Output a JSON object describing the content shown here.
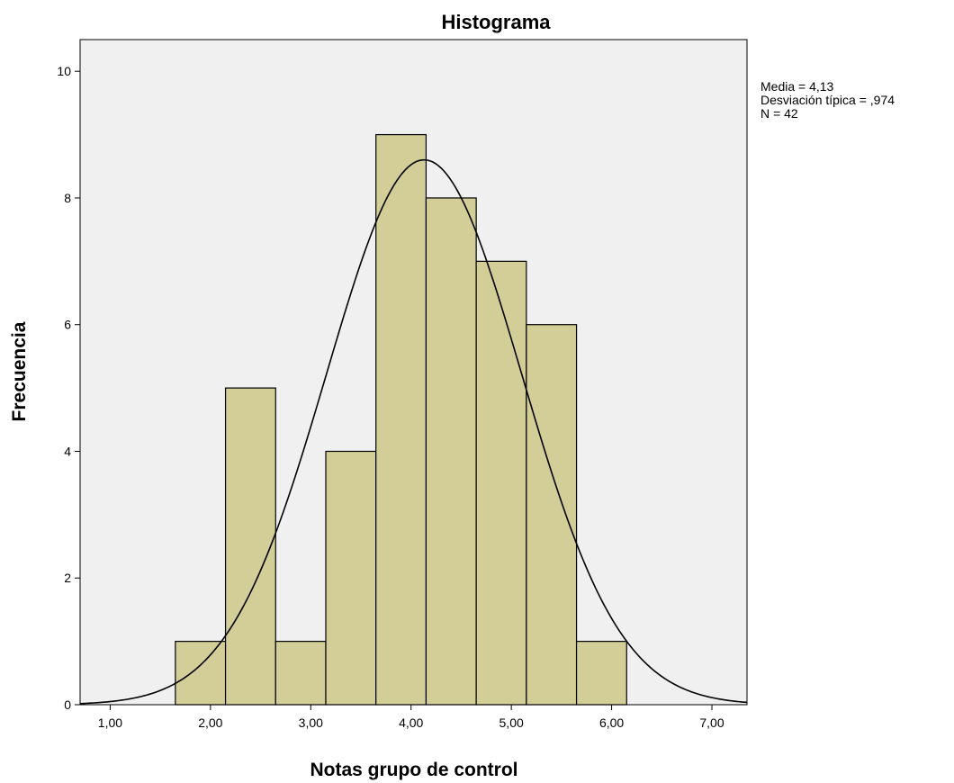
{
  "chart_data": {
    "type": "bar",
    "title": "Histograma",
    "xlabel": "Notas grupo de control",
    "ylabel": "Frecuencia",
    "xlim": [
      0.7,
      7.35
    ],
    "ylim": [
      0,
      10.5
    ],
    "bin_width": 0.5,
    "bins": [
      {
        "start": 1.65,
        "end": 2.15,
        "value": 1
      },
      {
        "start": 2.15,
        "end": 2.65,
        "value": 5
      },
      {
        "start": 2.65,
        "end": 3.15,
        "value": 1
      },
      {
        "start": 3.15,
        "end": 3.65,
        "value": 4
      },
      {
        "start": 3.65,
        "end": 4.15,
        "value": 9
      },
      {
        "start": 4.15,
        "end": 4.65,
        "value": 8
      },
      {
        "start": 4.65,
        "end": 5.15,
        "value": 7
      },
      {
        "start": 5.15,
        "end": 5.65,
        "value": 6
      },
      {
        "start": 5.65,
        "end": 6.15,
        "value": 1
      }
    ],
    "x_ticks": [
      {
        "value": 1,
        "label": "1,00"
      },
      {
        "value": 2,
        "label": "2,00"
      },
      {
        "value": 3,
        "label": "3,00"
      },
      {
        "value": 4,
        "label": "4,00"
      },
      {
        "value": 5,
        "label": "5,00"
      },
      {
        "value": 6,
        "label": "6,00"
      },
      {
        "value": 7,
        "label": "7,00"
      }
    ],
    "y_ticks": [
      {
        "value": 0,
        "label": "0"
      },
      {
        "value": 2,
        "label": "2"
      },
      {
        "value": 4,
        "label": "4"
      },
      {
        "value": 6,
        "label": "6"
      },
      {
        "value": 8,
        "label": "8"
      },
      {
        "value": 10,
        "label": "10"
      }
    ],
    "normal_curve": {
      "mean": 4.13,
      "sd": 0.974,
      "n": 42
    },
    "stats_text": [
      "Media = 4,13",
      "Desviación típica = ,974",
      "N = 42"
    ],
    "grid": false,
    "colors": {
      "plot_background": "#f0f0f0",
      "bar_fill": "#d3ce97",
      "bar_stroke": "#000000",
      "curve": "#000000"
    }
  }
}
